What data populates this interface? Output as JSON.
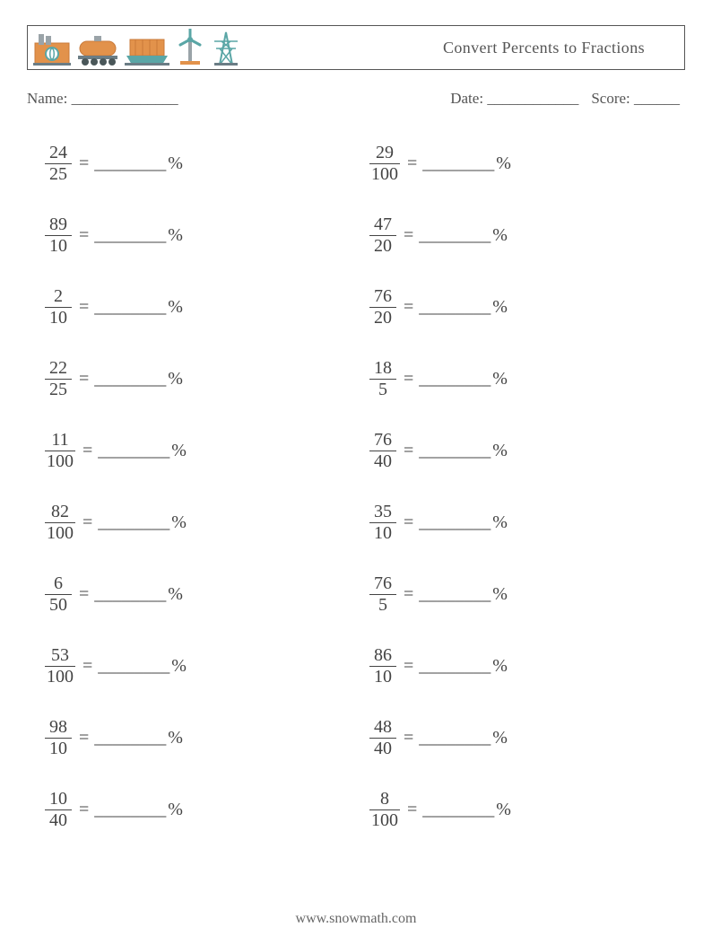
{
  "colors": {
    "page_bg": "#ffffff",
    "border": "#555555",
    "text": "#444444",
    "text_light": "#555555",
    "footer_text": "#666666",
    "icon_orange": "#e2924b",
    "icon_orange_dark": "#c97a3a",
    "icon_teal": "#5aa6a6",
    "icon_gray": "#9aa3a8",
    "icon_dark": "#4a5759",
    "icon_rail": "#6b7d85"
  },
  "fonts": {
    "main_family": "Georgia, 'Times New Roman', serif",
    "title_fontsize": 18,
    "body_fontsize": 20,
    "meta_fontsize": 17,
    "footer_fontsize": 16
  },
  "header": {
    "title": "Convert Percents to Fractions",
    "icons": [
      "factory-icon",
      "tankcar-icon",
      "ship-icon",
      "windturbine-icon",
      "pylon-icon"
    ]
  },
  "meta": {
    "name_label": "Name:",
    "name_blank": "______________",
    "date_label": "Date:",
    "date_blank": "____________",
    "score_label": "Score:",
    "score_blank": "______"
  },
  "answer_blank": "________",
  "equals_sign": "=",
  "percent_sign": "%",
  "footer_text": "www.snowmath.com",
  "problems": {
    "left": [
      {
        "numerator": "24",
        "denominator": "25"
      },
      {
        "numerator": "89",
        "denominator": "10"
      },
      {
        "numerator": "2",
        "denominator": "10"
      },
      {
        "numerator": "22",
        "denominator": "25"
      },
      {
        "numerator": "11",
        "denominator": "100"
      },
      {
        "numerator": "82",
        "denominator": "100"
      },
      {
        "numerator": "6",
        "denominator": "50"
      },
      {
        "numerator": "53",
        "denominator": "100"
      },
      {
        "numerator": "98",
        "denominator": "10"
      },
      {
        "numerator": "10",
        "denominator": "40"
      }
    ],
    "right": [
      {
        "numerator": "29",
        "denominator": "100"
      },
      {
        "numerator": "47",
        "denominator": "20"
      },
      {
        "numerator": "76",
        "denominator": "20"
      },
      {
        "numerator": "18",
        "denominator": "5"
      },
      {
        "numerator": "76",
        "denominator": "40"
      },
      {
        "numerator": "35",
        "denominator": "10"
      },
      {
        "numerator": "76",
        "denominator": "5"
      },
      {
        "numerator": "86",
        "denominator": "10"
      },
      {
        "numerator": "48",
        "denominator": "40"
      },
      {
        "numerator": "8",
        "denominator": "100"
      }
    ]
  }
}
